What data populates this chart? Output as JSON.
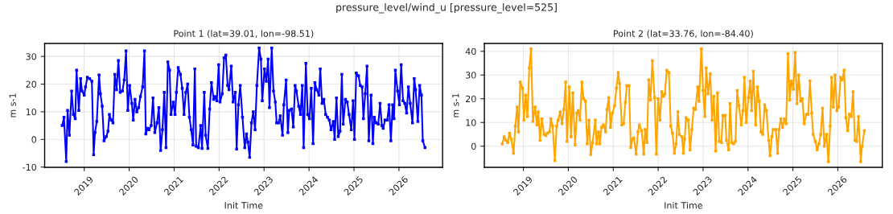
{
  "chart_data": [
    {
      "type": "line",
      "title": "Point 1 (lat=39.01, lon=-98.51)",
      "xlabel": "Init Time",
      "ylabel": "m s-1",
      "annotations": [
        "pressure_level/wind_u [pressure_level=525]"
      ],
      "xlim": [
        2018.12,
        2026.97
      ],
      "xticks": [
        2019,
        2020,
        2021,
        2022,
        2023,
        2024,
        2025,
        2026
      ],
      "ylim": [
        -10.1,
        34.7
      ],
      "yticks": [
        -10,
        0,
        10,
        20,
        30
      ],
      "grid": true,
      "marker": "square",
      "line_style": "solid",
      "series": [
        {
          "color": "#0000ff",
          "x": [
            2018.51,
            2018.55,
            2018.6,
            2018.63,
            2018.67,
            2018.72,
            2018.76,
            2018.8,
            2018.83,
            2018.88,
            2018.92,
            2018.95,
            2019.0,
            2019.03,
            2019.07,
            2019.12,
            2019.17,
            2019.21,
            2019.24,
            2019.28,
            2019.33,
            2019.36,
            2019.4,
            2019.44,
            2019.49,
            2019.53,
            2019.56,
            2019.6,
            2019.64,
            2019.68,
            2019.72,
            2019.76,
            2019.8,
            2019.85,
            2019.89,
            2019.93,
            2019.97,
            2020.01,
            2020.06,
            2020.09,
            2020.13,
            2020.17,
            2020.21,
            2020.25,
            2020.3,
            2020.34,
            2020.37,
            2020.41,
            2020.44,
            2020.49,
            2020.53,
            2020.57,
            2020.62,
            2020.66,
            2020.7,
            2020.74,
            2020.78,
            2020.82,
            2020.86,
            2020.9,
            2020.93,
            2020.98,
            2021.02,
            2021.05,
            2021.09,
            2021.14,
            2021.18,
            2021.22,
            2021.26,
            2021.3,
            2021.34,
            2021.38,
            2021.42,
            2021.46,
            2021.49,
            2021.54,
            2021.59,
            2021.62,
            2021.67,
            2021.7,
            2021.75,
            2021.79,
            2021.83,
            2021.88,
            2021.91,
            2021.95,
            2021.99,
            2022.02,
            2022.07,
            2022.11,
            2022.15,
            2022.19,
            2022.22,
            2022.27,
            2022.31,
            2022.36,
            2022.39,
            2022.43,
            2022.47,
            2022.52,
            2022.57,
            2022.61,
            2022.64,
            2022.68,
            2022.72,
            2022.76,
            2022.8,
            2022.84,
            2022.89,
            2022.93,
            2022.96,
            2023.01,
            2023.05,
            2023.09,
            2023.12,
            2023.17,
            2023.21,
            2023.25,
            2023.28,
            2023.32,
            2023.36,
            2023.41,
            2023.44,
            2023.49,
            2023.53,
            2023.56,
            2023.61,
            2023.65,
            2023.69,
            2023.72,
            2023.77,
            2023.81,
            2023.85,
            2023.88,
            2023.93,
            2023.97,
            2024.01,
            2024.05,
            2024.09,
            2024.13,
            2024.17,
            2024.22,
            2024.25,
            2024.29,
            2024.33,
            2024.37,
            2024.41,
            2024.45,
            2024.49,
            2024.54,
            2024.57,
            2024.61,
            2024.65,
            2024.69,
            2024.73,
            2024.76,
            2024.81,
            2024.85,
            2024.89,
            2024.94,
            2024.98,
            2025.01,
            2025.05,
            2025.1,
            2025.14,
            2025.18,
            2025.21,
            2025.25,
            2025.29,
            2025.33,
            2025.38,
            2025.42,
            2025.45,
            2025.49,
            2025.54,
            2025.58,
            2025.62,
            2025.65,
            2025.69,
            2025.74,
            2025.78,
            2025.82,
            2025.86,
            2025.89,
            2025.92,
            2025.97,
            2026.01,
            2026.05,
            2026.09,
            2026.13,
            2026.17,
            2026.21,
            2026.25,
            2026.3,
            2026.34,
            2026.37,
            2026.42,
            2026.46,
            2026.5,
            2026.53,
            2026.58
          ],
          "values": [
            5,
            8,
            -8,
            10.5,
            1.5,
            17.5,
            9,
            7.5,
            25,
            10.5,
            22,
            17.5,
            16,
            19,
            22.5,
            22,
            21,
            -5.5,
            2.5,
            6.5,
            23.3,
            16.5,
            12,
            -0.5,
            1,
            3,
            9,
            7,
            6,
            23.5,
            18,
            28.5,
            17,
            17.5,
            21.5,
            32,
            10.5,
            19.5,
            13,
            7,
            14.5,
            10,
            11.5,
            15.5,
            19,
            32,
            2,
            4,
            3.5,
            5,
            15,
            2.5,
            6,
            11.5,
            -4,
            3.5,
            17,
            -3,
            28,
            25,
            9,
            13.5,
            9,
            17,
            26,
            23.5,
            18.5,
            9,
            17,
            20,
            8,
            3.5,
            -2,
            25.5,
            -2.5,
            -3,
            5,
            -3.3,
            17,
            1.5,
            -3.3,
            11,
            20.5,
            14.5,
            15.5,
            14,
            27,
            13.5,
            16.5,
            29.5,
            30.5,
            19.5,
            18,
            26.5,
            13.5,
            17,
            -3.5,
            12.5,
            19.5,
            8,
            -3,
            2,
            -1,
            -6.5,
            6,
            10,
            3.5,
            19.5,
            33,
            29,
            14,
            25.5,
            21,
            29,
            11.5,
            33,
            17.5,
            13.5,
            6,
            6,
            8.5,
            1.5,
            12.5,
            21.5,
            2.5,
            10.5,
            11,
            4.5,
            19.5,
            17.5,
            12,
            9,
            19.5,
            -3,
            27.5,
            9,
            7.5,
            18.5,
            -1.5,
            20.5,
            18,
            16,
            25.5,
            13,
            14.5,
            9,
            8,
            7,
            3.5,
            6.5,
            0,
            15,
            1,
            3,
            23.5,
            5.5,
            14.5,
            13.5,
            9,
            3.5,
            14,
            0,
            24,
            23,
            19.5,
            19,
            7.5,
            16.5,
            26.5,
            -0.5,
            16,
            -1.5,
            8,
            6,
            5.5,
            13,
            5,
            4,
            7,
            7,
            12.5,
            -0.5,
            12.5,
            7.5,
            25,
            17.5,
            12.5,
            27,
            14,
            13,
            9.5,
            19,
            13,
            6,
            22,
            18,
            6.5,
            19.5,
            16,
            -0.5,
            -3
          ]
        }
      ]
    },
    {
      "type": "line",
      "title": "Point 2 (lat=33.76, lon=-84.40)",
      "xlabel": "Init Time",
      "ylabel": "m s-1",
      "xlim": [
        2018.13,
        2026.99
      ],
      "xticks": [
        2019,
        2020,
        2021,
        2022,
        2023,
        2024,
        2025,
        2026
      ],
      "ylim": [
        -8.9,
        43.3
      ],
      "yticks": [
        0,
        10,
        20,
        30,
        40
      ],
      "grid": true,
      "marker": "square",
      "line_style": "solid",
      "series": [
        {
          "color": "#ffa500",
          "x": [
            2018.53,
            2018.57,
            2018.61,
            2018.65,
            2018.69,
            2018.73,
            2018.78,
            2018.82,
            2018.86,
            2018.89,
            2018.93,
            2018.98,
            2019.01,
            2019.05,
            2019.09,
            2019.13,
            2019.17,
            2019.21,
            2019.26,
            2019.3,
            2019.33,
            2019.37,
            2019.41,
            2019.46,
            2019.5,
            2019.53,
            2019.58,
            2019.61,
            2019.65,
            2019.7,
            2019.74,
            2019.77,
            2019.82,
            2019.86,
            2019.9,
            2019.94,
            2019.97,
            2020.02,
            2020.06,
            2020.1,
            2020.15,
            2020.19,
            2020.22,
            2020.26,
            2020.3,
            2020.34,
            2020.38,
            2020.42,
            2020.46,
            2020.5,
            2020.54,
            2020.6,
            2020.63,
            2020.67,
            2020.7,
            2020.74,
            2020.78,
            2020.83,
            2020.86,
            2020.9,
            2020.94,
            2020.98,
            2021.03,
            2021.07,
            2021.11,
            2021.14,
            2021.19,
            2021.23,
            2021.27,
            2021.3,
            2021.35,
            2021.39,
            2021.43,
            2021.46,
            2021.51,
            2021.55,
            2021.58,
            2021.63,
            2021.68,
            2021.71,
            2021.75,
            2021.79,
            2021.83,
            2021.87,
            2021.92,
            2021.96,
            2022.0,
            2022.04,
            2022.08,
            2022.12,
            2022.15,
            2022.19,
            2022.24,
            2022.28,
            2022.32,
            2022.36,
            2022.4,
            2022.44,
            2022.47,
            2022.53,
            2022.56,
            2022.59,
            2022.62,
            2022.67,
            2022.71,
            2022.75,
            2022.79,
            2022.83,
            2022.88,
            2022.91,
            2022.96,
            2023.0,
            2023.04,
            2023.07,
            2023.11,
            2023.16,
            2023.2,
            2023.24,
            2023.28,
            2023.32,
            2023.36,
            2023.41,
            2023.44,
            2023.49,
            2023.52,
            2023.57,
            2023.6,
            2023.64,
            2023.68,
            2023.72,
            2023.76,
            2023.8,
            2023.85,
            2023.89,
            2023.92,
            2023.96,
            2024.01,
            2024.05,
            2024.08,
            2024.12,
            2024.17,
            2024.21,
            2024.25,
            2024.29,
            2024.33,
            2024.37,
            2024.41,
            2024.46,
            2024.49,
            2024.53,
            2024.56,
            2024.62,
            2024.66,
            2024.69,
            2024.73,
            2024.77,
            2024.81,
            2024.85,
            2024.89,
            2024.93,
            2024.96,
            2025.01,
            2025.05,
            2025.09,
            2025.13,
            2025.17,
            2025.21,
            2025.25,
            2025.3,
            2025.34,
            2025.38,
            2025.42,
            2025.45,
            2025.5,
            2025.54,
            2025.58,
            2025.62,
            2025.66,
            2025.7,
            2025.75,
            2025.79,
            2025.83,
            2025.86,
            2025.9,
            2025.94,
            2025.98,
            2026.02,
            2026.06,
            2026.1,
            2026.14,
            2026.18,
            2026.22,
            2026.26,
            2026.3,
            2026.34,
            2026.38,
            2026.42,
            2026.46,
            2026.51,
            2026.54,
            2026.59
          ],
          "values": [
            1,
            4,
            2.5,
            1.5,
            5.5,
            3,
            -3,
            8.5,
            16.5,
            6,
            27,
            24.5,
            11,
            21.5,
            12.5,
            33,
            41,
            10.5,
            16.5,
            9,
            14.5,
            2.5,
            11.5,
            5,
            4.5,
            5.5,
            6,
            11.5,
            8.5,
            -6,
            8.5,
            11,
            14.5,
            9.5,
            15.5,
            27,
            2,
            25,
            4,
            22.5,
            0.5,
            14,
            15,
            11,
            27,
            20,
            19,
            1,
            11,
            -3.5,
            1.5,
            11,
            1,
            6,
            1,
            8,
            9,
            6,
            15.5,
            20.5,
            8,
            14,
            17,
            24.5,
            31,
            26.5,
            9,
            9.5,
            18.5,
            25.5,
            25.5,
            -0.5,
            3,
            3.5,
            -3.3,
            6,
            9,
            6.5,
            -3.3,
            7,
            1.5,
            28,
            19.5,
            36,
            20.5,
            -3.3,
            20,
            11,
            23,
            21,
            22,
            32,
            31,
            8.5,
            5.5,
            -3,
            1,
            14.5,
            5,
            4,
            -3,
            3,
            12,
            11,
            -1.5,
            7,
            16,
            15.5,
            25,
            19,
            41,
            23.5,
            12.5,
            33,
            22,
            30.5,
            11,
            21,
            -2,
            22.5,
            2,
            1.5,
            13,
            13,
            2.5,
            -1.5,
            18,
            1.5,
            1,
            2,
            23.5,
            17,
            9,
            15,
            29,
            10,
            20.5,
            27.5,
            15,
            31.5,
            9,
            25,
            19,
            6,
            5,
            17.5,
            15,
            2.5,
            -4,
            4,
            7,
            7,
            -3,
            7,
            11.5,
            8,
            11.5,
            9.5,
            39,
            19.5,
            27.5,
            24,
            39.5,
            18,
            30,
            19,
            20,
            9.5,
            13.5,
            13.5,
            27.5,
            14,
            5,
            2,
            -1.5,
            1,
            5,
            16,
            0,
            5,
            -6.5,
            8.5,
            29,
            16.5,
            30,
            15,
            16.5,
            29,
            28,
            32,
            12,
            6.5,
            13.5,
            12.5,
            23,
            2.5,
            2,
            12.5,
            -6.5,
            0,
            6.5
          ]
        }
      ]
    }
  ]
}
